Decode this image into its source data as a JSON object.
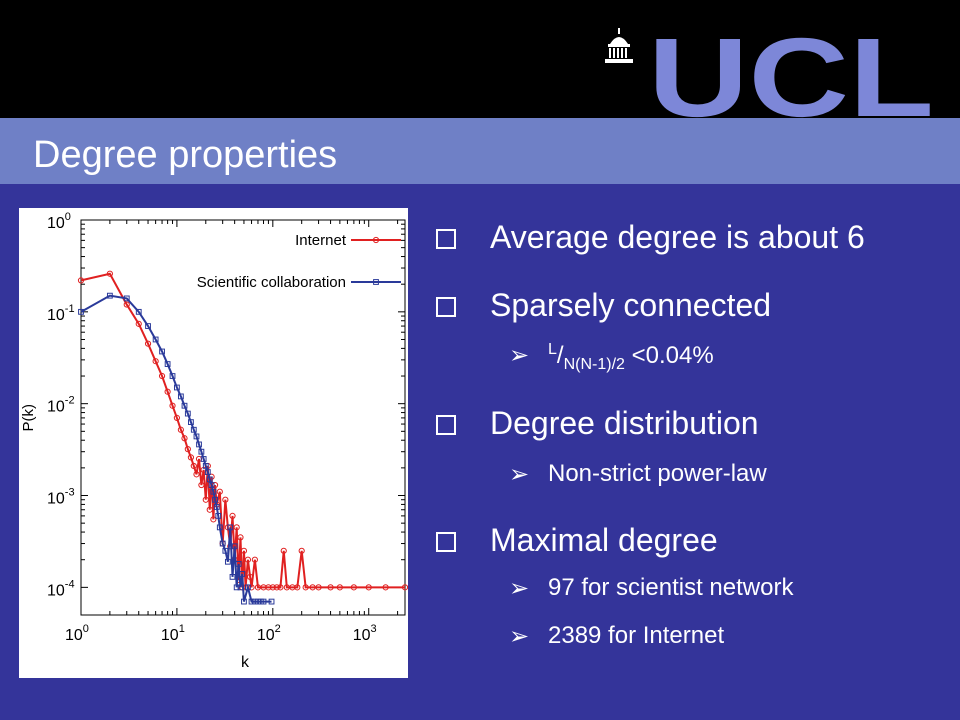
{
  "header": {
    "logo_text": "UCL",
    "logo_icon": "portico-dome-icon"
  },
  "slide": {
    "title": "Degree properties"
  },
  "bullets": [
    {
      "level": 1,
      "text": "Average degree is about 6"
    },
    {
      "level": 1,
      "text": "Sparsely connected"
    },
    {
      "level": 2,
      "frac_num": "L",
      "frac_den": "N(N-1)/2",
      "text": " <0.04%"
    },
    {
      "level": 1,
      "text": "Degree distribution"
    },
    {
      "level": 2,
      "text": "Non-strict power-law"
    },
    {
      "level": 1,
      "text": "Maximal degree"
    },
    {
      "level": 2,
      "text": "97 for scientist network"
    },
    {
      "level": 2,
      "text": "2389 for Internet"
    }
  ],
  "colors": {
    "background": "#34349a",
    "title_bar": "#6f80c6",
    "logo": "#7d87d8",
    "internet": "#e02020",
    "scientific": "#2a3a9a"
  },
  "chart_data": {
    "type": "line",
    "xlabel": "k",
    "ylabel": "P(k)",
    "xscale": "log",
    "yscale": "log",
    "xlim": [
      1,
      2389
    ],
    "ylim": [
      5e-05,
      1
    ],
    "x_ticks": [
      {
        "base": "10",
        "exp": "0"
      },
      {
        "base": "10",
        "exp": "1"
      },
      {
        "base": "10",
        "exp": "2"
      },
      {
        "base": "10",
        "exp": "3"
      }
    ],
    "y_ticks": [
      {
        "base": "10",
        "exp": "0"
      },
      {
        "base": "10",
        "exp": "-1"
      },
      {
        "base": "10",
        "exp": "-2"
      },
      {
        "base": "10",
        "exp": "-3"
      },
      {
        "base": "10",
        "exp": "-4"
      }
    ],
    "legend_position": "top-right",
    "series": [
      {
        "name": "Internet",
        "color": "#e02020",
        "marker": "circle",
        "points": [
          [
            1,
            0.22
          ],
          [
            2,
            0.26
          ],
          [
            3,
            0.12
          ],
          [
            4,
            0.074
          ],
          [
            5,
            0.045
          ],
          [
            6,
            0.029
          ],
          [
            7,
            0.02
          ],
          [
            8,
            0.0135
          ],
          [
            9,
            0.0095
          ],
          [
            10,
            0.007
          ],
          [
            11,
            0.0052
          ],
          [
            12,
            0.0042
          ],
          [
            13,
            0.0032
          ],
          [
            14,
            0.0026
          ],
          [
            15,
            0.0021
          ],
          [
            16,
            0.0017
          ],
          [
            17,
            0.0025
          ],
          [
            18,
            0.0013
          ],
          [
            19,
            0.0019
          ],
          [
            20,
            0.0009
          ],
          [
            21,
            0.0021
          ],
          [
            22,
            0.0007
          ],
          [
            23,
            0.0016
          ],
          [
            24,
            0.00055
          ],
          [
            25,
            0.0013
          ],
          [
            26,
            0.0008
          ],
          [
            28,
            0.0011
          ],
          [
            30,
            0.0003
          ],
          [
            32,
            0.0009
          ],
          [
            34,
            0.00045
          ],
          [
            36,
            0.00028
          ],
          [
            38,
            0.0006
          ],
          [
            40,
            0.0002
          ],
          [
            42,
            0.00045
          ],
          [
            44,
            0.00012
          ],
          [
            46,
            0.00035
          ],
          [
            48,
            0.0001
          ],
          [
            50,
            0.00025
          ],
          [
            52,
            0.0001
          ],
          [
            55,
            0.0002
          ],
          [
            58,
            0.00013
          ],
          [
            60,
            0.0001
          ],
          [
            65,
            0.0002
          ],
          [
            70,
            0.0001
          ],
          [
            80,
            0.0001
          ],
          [
            90,
            0.0001
          ],
          [
            100,
            0.0001
          ],
          [
            110,
            0.0001
          ],
          [
            120,
            0.0001
          ],
          [
            130,
            0.00025
          ],
          [
            140,
            0.0001
          ],
          [
            160,
            0.0001
          ],
          [
            180,
            0.0001
          ],
          [
            200,
            0.00025
          ],
          [
            220,
            0.0001
          ],
          [
            260,
            0.0001
          ],
          [
            300,
            0.0001
          ],
          [
            400,
            0.0001
          ],
          [
            500,
            0.0001
          ],
          [
            700,
            0.0001
          ],
          [
            1000,
            0.0001
          ],
          [
            1500,
            0.0001
          ],
          [
            2389,
            0.0001
          ]
        ]
      },
      {
        "name": "Scientific collaboration",
        "color": "#2a3a9a",
        "marker": "square",
        "points": [
          [
            1,
            0.1
          ],
          [
            2,
            0.15
          ],
          [
            3,
            0.14
          ],
          [
            4,
            0.1
          ],
          [
            5,
            0.07
          ],
          [
            6,
            0.05
          ],
          [
            7,
            0.037
          ],
          [
            8,
            0.027
          ],
          [
            9,
            0.02
          ],
          [
            10,
            0.015
          ],
          [
            11,
            0.012
          ],
          [
            12,
            0.0095
          ],
          [
            13,
            0.0078
          ],
          [
            14,
            0.0063
          ],
          [
            15,
            0.0052
          ],
          [
            16,
            0.0044
          ],
          [
            17,
            0.0036
          ],
          [
            18,
            0.003
          ],
          [
            19,
            0.0025
          ],
          [
            20,
            0.0021
          ],
          [
            21,
            0.0018
          ],
          [
            22,
            0.0015
          ],
          [
            23,
            0.0013
          ],
          [
            24,
            0.0011
          ],
          [
            25,
            0.0009
          ],
          [
            26,
            0.00075
          ],
          [
            27,
            0.0006
          ],
          [
            28,
            0.00045
          ],
          [
            30,
            0.0003
          ],
          [
            32,
            0.00025
          ],
          [
            34,
            0.00019
          ],
          [
            36,
            0.00045
          ],
          [
            38,
            0.00013
          ],
          [
            40,
            0.00028
          ],
          [
            42,
            0.0001
          ],
          [
            44,
            0.00018
          ],
          [
            46,
            0.0001
          ],
          [
            48,
            0.00014
          ],
          [
            50,
            7e-05
          ],
          [
            55,
            0.0001
          ],
          [
            60,
            7e-05
          ],
          [
            65,
            7e-05
          ],
          [
            70,
            7e-05
          ],
          [
            75,
            7e-05
          ],
          [
            80,
            7e-05
          ],
          [
            97,
            7e-05
          ]
        ]
      }
    ]
  }
}
